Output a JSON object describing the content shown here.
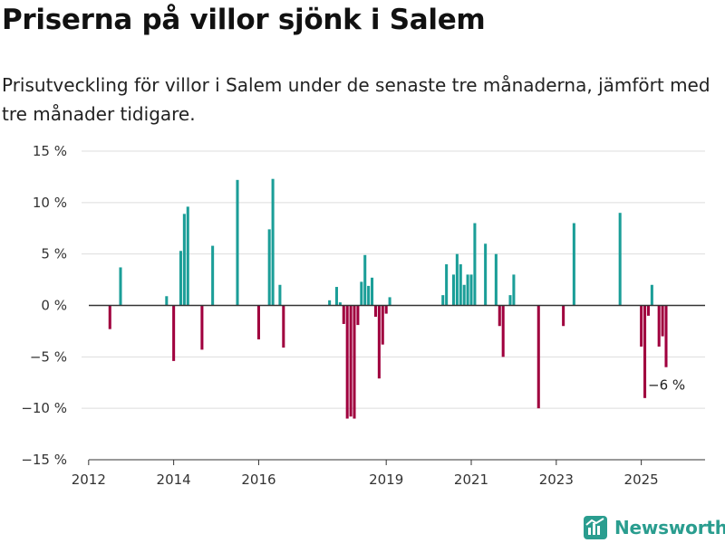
{
  "title": "Priserna på villor sjönk i Salem",
  "subtitle": "Prisutveckling för villor i Salem under de senaste tre månaderna, jämfört med tre månader tidigare.",
  "brand": {
    "name": "Newsworthy",
    "icon": "newsworthy-logo-icon"
  },
  "colors": {
    "positive": "#1b9e98",
    "negative": "#a0003e",
    "grid": "#dddddd",
    "zero": "#333333"
  },
  "chart_data": {
    "type": "bar",
    "title": "Priserna på villor sjönk i Salem",
    "xlabel": "",
    "ylabel": "",
    "ylim": [
      -15,
      15
    ],
    "xlim": [
      "2011-11",
      "2026-07"
    ],
    "y_ticks": [
      15,
      10,
      5,
      0,
      -5,
      -10,
      -15
    ],
    "y_tick_labels": [
      "15 %",
      "10 %",
      "5 %",
      "0 %",
      "−5 %",
      "−10 %",
      "−15 %"
    ],
    "x_ticks": [
      "2012-01",
      "2014-01",
      "2016-01",
      "2019-01",
      "2021-01",
      "2023-01",
      "2025-01"
    ],
    "x_tick_labels": [
      "2012",
      "2014",
      "2016",
      "2019",
      "2021",
      "2023",
      "2025"
    ],
    "grid": true,
    "legend": "none",
    "annotation": {
      "date": "2025-08",
      "value": -6,
      "label": "−6 %"
    },
    "dates": [
      "2012-07",
      "2012-10",
      "2013-11",
      "2014-01",
      "2014-03",
      "2014-04",
      "2014-05",
      "2014-09",
      "2014-12",
      "2015-07",
      "2016-01",
      "2016-04",
      "2016-05",
      "2016-07",
      "2016-08",
      "2017-09",
      "2017-11",
      "2017-12",
      "2018-01",
      "2018-02",
      "2018-03",
      "2018-04",
      "2018-05",
      "2018-06",
      "2018-07",
      "2018-08",
      "2018-09",
      "2018-10",
      "2018-11",
      "2018-12",
      "2019-01",
      "2019-02",
      "2020-05",
      "2020-06",
      "2020-08",
      "2020-09",
      "2020-10",
      "2020-11",
      "2020-12",
      "2021-01",
      "2021-02",
      "2021-05",
      "2021-08",
      "2021-09",
      "2021-10",
      "2021-12",
      "2022-01",
      "2022-08",
      "2023-03",
      "2023-06",
      "2024-07",
      "2025-01",
      "2025-02",
      "2025-03",
      "2025-04",
      "2025-06",
      "2025-07",
      "2025-08"
    ],
    "values": [
      -2.3,
      3.7,
      0.9,
      -5.4,
      5.3,
      8.9,
      9.6,
      -4.3,
      5.8,
      12.2,
      -3.3,
      7.4,
      12.3,
      2.0,
      -4.1,
      0.5,
      1.8,
      0.3,
      -1.8,
      -11.0,
      -10.8,
      -11.0,
      -1.9,
      2.3,
      4.9,
      1.9,
      2.7,
      -1.1,
      -7.1,
      -3.8,
      -0.8,
      0.8,
      1.0,
      4.0,
      3.0,
      5.0,
      4.0,
      2.0,
      3.0,
      3.0,
      8.0,
      6.0,
      5.0,
      -2.0,
      -5.0,
      1.0,
      3.0,
      -10.0,
      -2.0,
      8.0,
      9.0,
      -4.0,
      -9.0,
      -1.0,
      2.0,
      -4.0,
      -3.0,
      -6.0
    ]
  }
}
